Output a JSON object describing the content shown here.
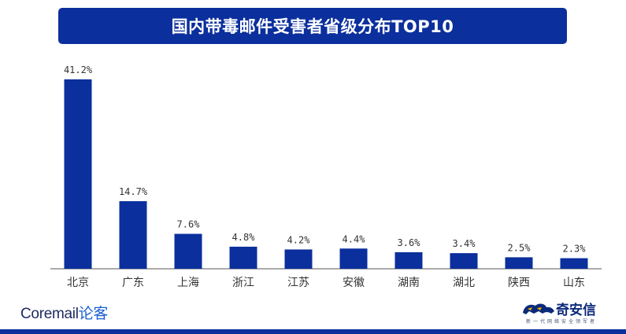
{
  "header": {
    "title": "国内带毒邮件受害者省级分布TOP10"
  },
  "branding": {
    "left_logo": {
      "brand": "Coremail",
      "suffix": "论客"
    },
    "right_logo": {
      "name": "奇安信",
      "slogan": "新一代网络安全领军者"
    }
  },
  "colors": {
    "bar": "#0b2f9c",
    "title_bg": "#0b2f9c",
    "axis": "#555555",
    "text": "#333333"
  },
  "chart_data": {
    "type": "bar",
    "title": "国内带毒邮件受害者省级分布TOP10",
    "categories": [
      "北京",
      "广东",
      "上海",
      "浙江",
      "江苏",
      "安徽",
      "湖南",
      "湖北",
      "陕西",
      "山东"
    ],
    "values": [
      41.2,
      14.7,
      7.6,
      4.8,
      4.2,
      4.4,
      3.6,
      3.4,
      2.5,
      2.3
    ],
    "value_labels": [
      "41.2%",
      "14.7%",
      "7.6%",
      "4.8%",
      "4.2%",
      "4.4%",
      "3.6%",
      "3.4%",
      "2.5%",
      "2.3%"
    ],
    "xlabel": "",
    "ylabel": "",
    "ylim": [
      0,
      41.2
    ],
    "grid": false,
    "legend": "none"
  }
}
